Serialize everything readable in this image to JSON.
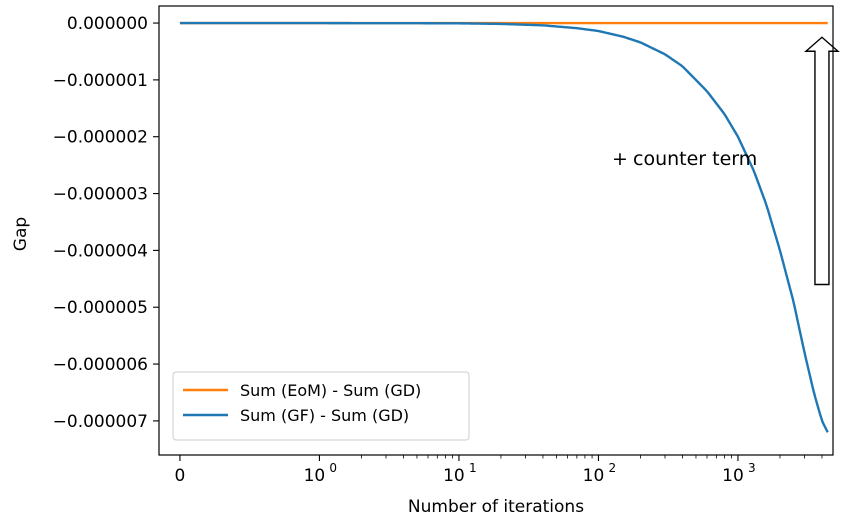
{
  "chart_data": {
    "type": "line",
    "xlabel": "Number of iterations",
    "ylabel": "Gap",
    "xscale": "symlog",
    "xlim": [
      -0.15,
      4800
    ],
    "ylim": [
      -7.6e-06,
      3e-07
    ],
    "xticks": [
      {
        "value": 0,
        "label": "0"
      },
      {
        "value": 1,
        "label": "10",
        "exp": "0"
      },
      {
        "value": 10,
        "label": "10",
        "exp": "1"
      },
      {
        "value": 100,
        "label": "10",
        "exp": "2"
      },
      {
        "value": 1000,
        "label": "10",
        "exp": "3"
      }
    ],
    "yticks": [
      {
        "value": 0,
        "label": "0.000000"
      },
      {
        "value": -1e-06,
        "label": "−0.000001"
      },
      {
        "value": -2e-06,
        "label": "−0.000002"
      },
      {
        "value": -3e-06,
        "label": "−0.000003"
      },
      {
        "value": -4e-06,
        "label": "−0.000004"
      },
      {
        "value": -5e-06,
        "label": "−0.000005"
      },
      {
        "value": -6e-06,
        "label": "−0.000006"
      },
      {
        "value": -7e-06,
        "label": "−0.000007"
      }
    ],
    "series": [
      {
        "name": "Sum (EoM) - Sum (GD)",
        "color": "#ff7f0e",
        "x": [
          0,
          1,
          10,
          100,
          1000,
          4400
        ],
        "y": [
          0,
          0,
          0,
          0,
          0,
          0
        ]
      },
      {
        "name": "Sum (GF)  - Sum (GD)",
        "color": "#1f77b4",
        "x": [
          0,
          1,
          3,
          5,
          10,
          20,
          40,
          70,
          100,
          150,
          200,
          300,
          400,
          600,
          800,
          1000,
          1300,
          1600,
          2000,
          2500,
          3000,
          3500,
          4000,
          4400
        ],
        "y": [
          0,
          -1e-09,
          -2e-09,
          -3e-09,
          -5e-09,
          -1.5e-08,
          -4e-08,
          -9e-08,
          -1.4e-07,
          -2.4e-07,
          -3.4e-07,
          -5.5e-07,
          -7.6e-07,
          -1.2e-06,
          -1.6e-06,
          -2e-06,
          -2.6e-06,
          -3.2e-06,
          -4e-06,
          -4.9e-06,
          -5.8e-06,
          -6.5e-06,
          -7e-06,
          -7.2e-06
        ]
      }
    ],
    "legend": "lower-left",
    "annotation": {
      "text": "counter term",
      "prefix": "+",
      "arrow": "up",
      "x": 4000,
      "y_from": -4.6e-06,
      "y_to": -2.5e-07
    }
  }
}
